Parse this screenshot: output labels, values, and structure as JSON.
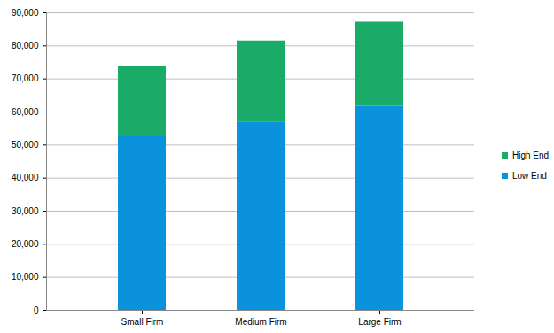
{
  "chart_data": {
    "type": "bar",
    "stacked": true,
    "categories": [
      "Small Firm",
      "Medium Firm",
      "Large Firm"
    ],
    "series": [
      {
        "name": "Low End",
        "color": "#0a93dc",
        "values": [
          52500,
          57000,
          61700
        ]
      },
      {
        "name": "High End",
        "color": "#1aab68",
        "values": [
          21200,
          24500,
          25500
        ]
      }
    ],
    "ylim": [
      0,
      90000
    ],
    "yticks": [
      0,
      {
        "value": 10000,
        "label": "10,000"
      },
      {
        "value": 20000,
        "label": "20,000"
      },
      {
        "value": 30000,
        "label": "30,000"
      },
      {
        "value": 40000,
        "label": "40,000"
      },
      {
        "value": 50000,
        "label": "50,000"
      },
      {
        "value": 60000,
        "label": "60,000"
      },
      {
        "value": 70000,
        "label": "70,000"
      },
      {
        "value": 80000,
        "label": "80,000"
      },
      {
        "value": 90000,
        "label": "90,000"
      }
    ],
    "grid": true,
    "legend": "right"
  }
}
